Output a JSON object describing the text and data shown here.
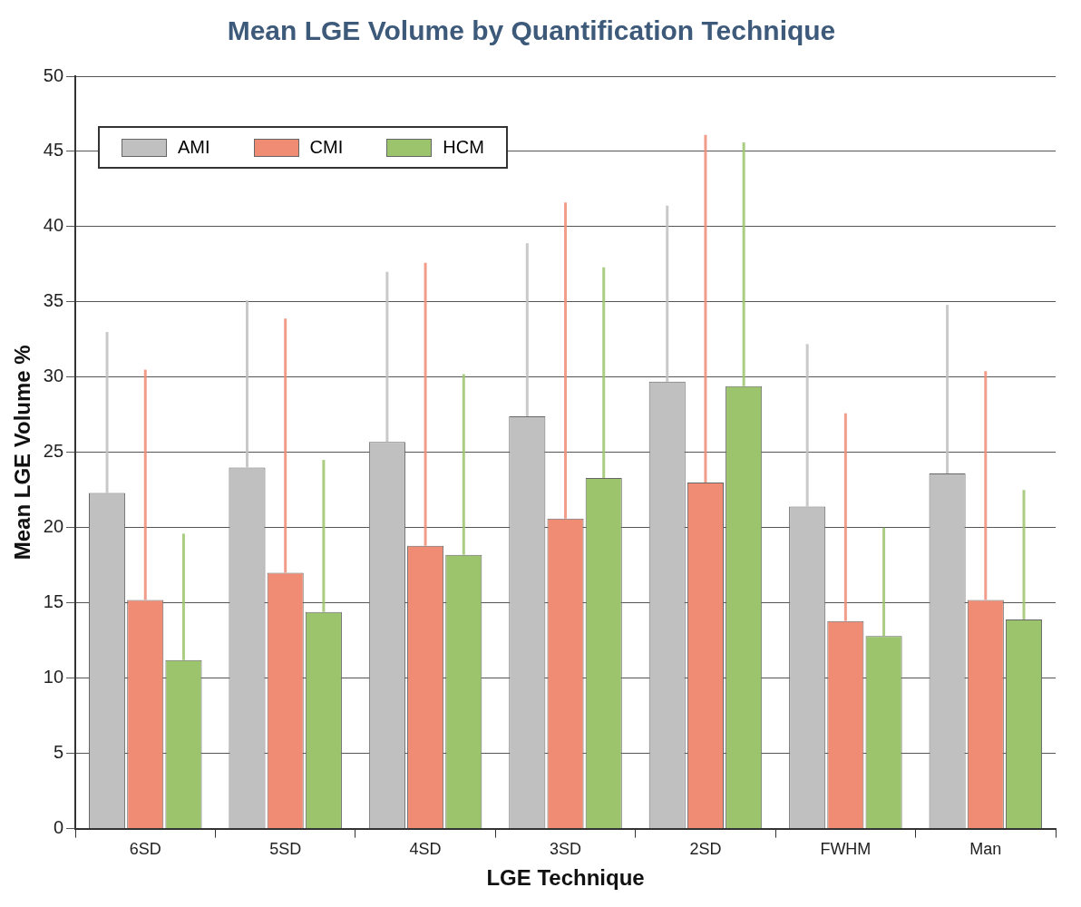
{
  "chart_data": {
    "type": "bar",
    "title": "Mean LGE Volume by Quantification Technique",
    "xlabel": "LGE Technique",
    "ylabel": "Mean LGE Volume %",
    "categories": [
      "6SD",
      "5SD",
      "4SD",
      "3SD",
      "2SD",
      "FWHM",
      "Man"
    ],
    "series": [
      {
        "name": "AMI",
        "color": "#c0c0c0",
        "values": [
          22.3,
          24.0,
          25.7,
          27.4,
          29.7,
          21.4,
          23.6
        ],
        "errors": [
          [
            22.3,
            33.0
          ],
          [
            24.0,
            35.1
          ],
          [
            25.7,
            37.0
          ],
          [
            27.4,
            38.9
          ],
          [
            29.7,
            41.4
          ],
          [
            21.4,
            32.2
          ],
          [
            23.6,
            34.8
          ]
        ]
      },
      {
        "name": "CMI",
        "color": "#f08c74",
        "values": [
          15.2,
          17.0,
          18.8,
          20.6,
          23.0,
          13.8,
          15.2
        ],
        "errors": [
          [
            15.2,
            30.5
          ],
          [
            17.0,
            33.9
          ],
          [
            18.8,
            37.6
          ],
          [
            20.6,
            41.6
          ],
          [
            23.0,
            46.1
          ],
          [
            13.8,
            27.6
          ],
          [
            15.2,
            30.4
          ]
        ]
      },
      {
        "name": "HCM",
        "color": "#9cc46c",
        "values": [
          11.2,
          14.4,
          18.2,
          23.3,
          29.4,
          12.8,
          13.9
        ],
        "errors": [
          [
            11.2,
            19.6
          ],
          [
            14.4,
            24.5
          ],
          [
            18.2,
            30.2
          ],
          [
            23.3,
            37.3
          ],
          [
            29.4,
            45.6
          ],
          [
            12.8,
            20.0
          ],
          [
            13.9,
            22.5
          ]
        ]
      }
    ],
    "ylim": [
      0,
      50
    ],
    "yticks": [
      0,
      5,
      10,
      15,
      20,
      25,
      30,
      35,
      40,
      45,
      50
    ],
    "grid": "y",
    "legend": "top left"
  }
}
